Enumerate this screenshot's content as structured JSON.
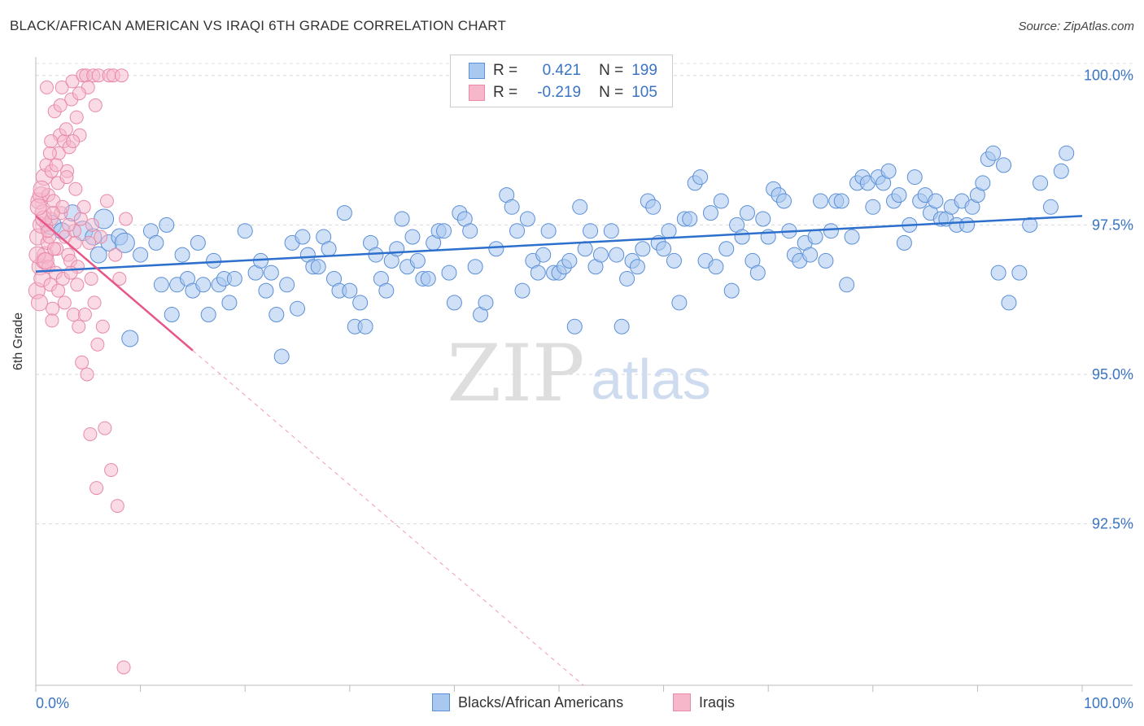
{
  "title": "BLACK/AFRICAN AMERICAN VS IRAQI 6TH GRADE CORRELATION CHART",
  "source": "Source: ZipAtlas.com",
  "watermark": {
    "zip": "ZIP",
    "atlas": "atlas"
  },
  "legend": {
    "r_label": "R =",
    "n_label": "N =",
    "blue": {
      "r": "0.421",
      "n": "199"
    },
    "pink": {
      "r": "-0.219",
      "n": "105"
    }
  },
  "colors": {
    "blue_fill": "#a9c8f0",
    "blue_stroke": "#5b8fd6",
    "blue_line": "#2d6fcc",
    "pink_fill": "#f6b7cb",
    "pink_stroke": "#e88aa8",
    "pink_line": "#e8578a",
    "tick_text": "#3a74c4"
  },
  "chart_data": {
    "type": "scatter",
    "title": "BLACK/AFRICAN AMERICAN VS IRAQI 6TH GRADE CORRELATION CHART",
    "xlabel": "",
    "ylabel": "6th Grade",
    "xlim": [
      0,
      100
    ],
    "ylim": [
      89.8,
      100.2
    ],
    "x_tick_labels": [
      "0.0%",
      "100.0%"
    ],
    "y_ticks": [
      {
        "value": 100.0,
        "label": "100.0%"
      },
      {
        "value": 97.5,
        "label": "97.5%"
      },
      {
        "value": 95.0,
        "label": "95.0%"
      },
      {
        "value": 92.5,
        "label": "92.5%"
      }
    ],
    "grid": true,
    "legend_placement": "bottom-center",
    "series": [
      {
        "name": "Blacks/African Americans",
        "trend": [
          [
            0,
            96.72
          ],
          [
            100,
            97.65
          ]
        ],
        "points": [
          [
            1.5,
            97.5
          ],
          [
            2.5,
            97.4
          ],
          [
            3.5,
            97.7
          ],
          [
            4.5,
            97.4
          ],
          [
            5.5,
            97.3
          ],
          [
            6,
            97.0
          ],
          [
            6.5,
            97.6
          ],
          [
            7,
            97.2
          ],
          [
            8,
            97.3
          ],
          [
            8.5,
            97.2
          ],
          [
            9,
            95.6
          ],
          [
            10,
            97.0
          ],
          [
            11,
            97.4
          ],
          [
            11.5,
            97.2
          ],
          [
            12,
            96.5
          ],
          [
            12.5,
            97.5
          ],
          [
            13,
            96.0
          ],
          [
            13.5,
            96.5
          ],
          [
            14,
            97.0
          ],
          [
            14.5,
            96.6
          ],
          [
            15,
            96.4
          ],
          [
            15.5,
            97.2
          ],
          [
            16,
            96.5
          ],
          [
            16.5,
            96.0
          ],
          [
            17,
            96.9
          ],
          [
            17.5,
            96.5
          ],
          [
            18,
            96.6
          ],
          [
            18.5,
            96.2
          ],
          [
            19,
            96.6
          ],
          [
            20,
            97.4
          ],
          [
            21,
            96.7
          ],
          [
            21.5,
            96.9
          ],
          [
            22,
            96.4
          ],
          [
            22.5,
            96.7
          ],
          [
            23,
            96.0
          ],
          [
            23.5,
            95.3
          ],
          [
            24,
            96.5
          ],
          [
            24.5,
            97.2
          ],
          [
            25,
            96.1
          ],
          [
            25.5,
            97.3
          ],
          [
            26,
            97.0
          ],
          [
            26.5,
            96.8
          ],
          [
            27,
            96.8
          ],
          [
            27.5,
            97.3
          ],
          [
            28,
            97.1
          ],
          [
            28.5,
            96.6
          ],
          [
            29,
            96.4
          ],
          [
            29.5,
            97.7
          ],
          [
            30,
            96.4
          ],
          [
            30.5,
            95.8
          ],
          [
            31,
            96.2
          ],
          [
            31.5,
            95.8
          ],
          [
            32,
            97.2
          ],
          [
            32.5,
            97.0
          ],
          [
            33,
            96.6
          ],
          [
            33.5,
            96.4
          ],
          [
            34,
            96.9
          ],
          [
            34.5,
            97.1
          ],
          [
            35,
            97.6
          ],
          [
            35.5,
            96.8
          ],
          [
            36,
            97.3
          ],
          [
            36.5,
            96.9
          ],
          [
            37,
            96.6
          ],
          [
            37.5,
            96.6
          ],
          [
            38,
            97.2
          ],
          [
            38.5,
            97.4
          ],
          [
            39,
            97.4
          ],
          [
            39.5,
            96.7
          ],
          [
            40,
            96.2
          ],
          [
            40.5,
            97.7
          ],
          [
            41,
            97.6
          ],
          [
            41.5,
            97.4
          ],
          [
            42,
            96.8
          ],
          [
            42.5,
            96.0
          ],
          [
            43,
            96.2
          ],
          [
            44,
            97.1
          ],
          [
            45,
            98.0
          ],
          [
            45.5,
            97.8
          ],
          [
            46,
            97.4
          ],
          [
            46.5,
            96.4
          ],
          [
            47,
            97.6
          ],
          [
            47.5,
            96.9
          ],
          [
            48,
            96.7
          ],
          [
            48.5,
            97.0
          ],
          [
            49,
            97.4
          ],
          [
            49.5,
            96.7
          ],
          [
            50,
            96.7
          ],
          [
            50.5,
            96.8
          ],
          [
            51,
            96.9
          ],
          [
            51.5,
            95.8
          ],
          [
            52,
            97.8
          ],
          [
            52.5,
            97.1
          ],
          [
            53,
            97.4
          ],
          [
            53.5,
            96.8
          ],
          [
            54,
            97.0
          ],
          [
            55,
            97.4
          ],
          [
            55.5,
            97.0
          ],
          [
            56,
            95.8
          ],
          [
            56.5,
            96.6
          ],
          [
            57,
            96.9
          ],
          [
            57.5,
            96.8
          ],
          [
            58,
            97.1
          ],
          [
            58.5,
            97.9
          ],
          [
            59,
            97.8
          ],
          [
            59.5,
            97.2
          ],
          [
            60,
            97.1
          ],
          [
            60.5,
            97.4
          ],
          [
            61,
            96.9
          ],
          [
            61.5,
            96.2
          ],
          [
            62,
            97.6
          ],
          [
            62.5,
            97.6
          ],
          [
            63,
            98.2
          ],
          [
            63.5,
            98.3
          ],
          [
            64,
            96.9
          ],
          [
            64.5,
            97.7
          ],
          [
            65,
            96.8
          ],
          [
            65.5,
            97.9
          ],
          [
            66,
            97.1
          ],
          [
            66.5,
            96.4
          ],
          [
            67,
            97.5
          ],
          [
            67.5,
            97.3
          ],
          [
            68,
            97.7
          ],
          [
            68.5,
            96.9
          ],
          [
            69,
            96.7
          ],
          [
            69.5,
            97.6
          ],
          [
            70,
            97.3
          ],
          [
            70.5,
            98.1
          ],
          [
            71,
            98.0
          ],
          [
            71.5,
            97.9
          ],
          [
            72,
            97.4
          ],
          [
            72.5,
            97.0
          ],
          [
            73,
            96.9
          ],
          [
            73.5,
            97.2
          ],
          [
            74,
            97.0
          ],
          [
            74.5,
            97.3
          ],
          [
            75,
            97.9
          ],
          [
            75.5,
            96.9
          ],
          [
            76,
            97.4
          ],
          [
            76.5,
            97.9
          ],
          [
            77,
            97.9
          ],
          [
            77.5,
            96.5
          ],
          [
            78,
            97.3
          ],
          [
            78.5,
            98.2
          ],
          [
            79,
            98.3
          ],
          [
            79.5,
            98.2
          ],
          [
            80,
            97.8
          ],
          [
            80.5,
            98.3
          ],
          [
            81,
            98.2
          ],
          [
            81.5,
            98.4
          ],
          [
            82,
            97.9
          ],
          [
            82.5,
            98.0
          ],
          [
            83,
            97.2
          ],
          [
            83.5,
            97.5
          ],
          [
            84,
            98.3
          ],
          [
            84.5,
            97.9
          ],
          [
            85,
            98.0
          ],
          [
            85.5,
            97.7
          ],
          [
            86,
            97.9
          ],
          [
            86.5,
            97.6
          ],
          [
            87,
            97.6
          ],
          [
            87.5,
            97.8
          ],
          [
            88,
            97.5
          ],
          [
            88.5,
            97.9
          ],
          [
            89,
            97.5
          ],
          [
            89.5,
            97.8
          ],
          [
            90,
            98.0
          ],
          [
            90.5,
            98.2
          ],
          [
            91,
            98.6
          ],
          [
            91.5,
            98.7
          ],
          [
            92,
            96.7
          ],
          [
            92.5,
            98.5
          ],
          [
            93,
            96.2
          ],
          [
            94,
            96.7
          ],
          [
            95,
            97.5
          ],
          [
            96,
            98.2
          ],
          [
            97,
            97.8
          ],
          [
            98,
            98.4
          ],
          [
            98.5,
            98.7
          ]
        ]
      },
      {
        "name": "Iraqis",
        "trend": [
          [
            0,
            97.65
          ],
          [
            15,
            95.4
          ]
        ],
        "trend_dashed": [
          [
            15,
            95.4
          ],
          [
            95,
            83.4
          ]
        ],
        "points": [
          [
            0.1,
            96.4
          ],
          [
            0.2,
            97.3
          ],
          [
            0.3,
            97.9
          ],
          [
            0.4,
            96.8
          ],
          [
            0.5,
            98.0
          ],
          [
            0.5,
            97.5
          ],
          [
            0.6,
            96.6
          ],
          [
            0.7,
            97.7
          ],
          [
            0.8,
            98.3
          ],
          [
            0.8,
            96.9
          ],
          [
            0.9,
            97.0
          ],
          [
            1.0,
            98.5
          ],
          [
            1.0,
            97.5
          ],
          [
            1.1,
            97.2
          ],
          [
            1.2,
            96.8
          ],
          [
            1.2,
            98.0
          ],
          [
            1.3,
            97.3
          ],
          [
            1.4,
            96.5
          ],
          [
            1.5,
            97.6
          ],
          [
            1.5,
            98.4
          ],
          [
            1.6,
            96.1
          ],
          [
            1.7,
            97.9
          ],
          [
            1.8,
            99.4
          ],
          [
            1.9,
            96.7
          ],
          [
            2.0,
            97.1
          ],
          [
            2.1,
            98.2
          ],
          [
            2.2,
            98.7
          ],
          [
            2.3,
            99.0
          ],
          [
            2.4,
            97.7
          ],
          [
            2.5,
            99.8
          ],
          [
            2.6,
            96.6
          ],
          [
            2.7,
            98.9
          ],
          [
            2.8,
            97.3
          ],
          [
            2.9,
            99.1
          ],
          [
            3.0,
            98.4
          ],
          [
            3.1,
            97.0
          ],
          [
            3.2,
            98.8
          ],
          [
            3.3,
            96.9
          ],
          [
            3.4,
            99.6
          ],
          [
            3.5,
            99.9
          ],
          [
            3.6,
            96.0
          ],
          [
            3.7,
            97.4
          ],
          [
            3.8,
            98.1
          ],
          [
            3.9,
            99.3
          ],
          [
            4.0,
            96.8
          ],
          [
            4.1,
            95.8
          ],
          [
            4.2,
            99.0
          ],
          [
            4.3,
            97.6
          ],
          [
            4.4,
            95.2
          ],
          [
            4.5,
            100.0
          ],
          [
            4.6,
            97.8
          ],
          [
            4.7,
            96.0
          ],
          [
            4.8,
            100.0
          ],
          [
            4.9,
            95.0
          ],
          [
            5.0,
            99.8
          ],
          [
            5.1,
            97.2
          ],
          [
            5.2,
            94.0
          ],
          [
            5.3,
            96.6
          ],
          [
            5.4,
            97.5
          ],
          [
            5.5,
            100.0
          ],
          [
            5.6,
            96.2
          ],
          [
            5.7,
            99.5
          ],
          [
            5.8,
            93.1
          ],
          [
            5.9,
            95.5
          ],
          [
            6.0,
            100.0
          ],
          [
            6.2,
            97.3
          ],
          [
            6.4,
            95.8
          ],
          [
            6.6,
            94.1
          ],
          [
            6.8,
            97.9
          ],
          [
            7.0,
            100.0
          ],
          [
            7.2,
            93.4
          ],
          [
            7.4,
            100.0
          ],
          [
            7.6,
            97.0
          ],
          [
            7.8,
            92.8
          ],
          [
            8.0,
            96.6
          ],
          [
            8.2,
            100.0
          ],
          [
            8.4,
            90.1
          ],
          [
            8.6,
            97.6
          ],
          [
            1.05,
            99.8
          ],
          [
            1.35,
            98.7
          ],
          [
            1.55,
            95.9
          ],
          [
            1.75,
            97.1
          ],
          [
            1.95,
            98.5
          ],
          [
            2.15,
            96.4
          ],
          [
            2.35,
            99.5
          ],
          [
            2.55,
            97.8
          ],
          [
            2.75,
            96.2
          ],
          [
            2.95,
            98.3
          ],
          [
            3.15,
            97.5
          ],
          [
            3.35,
            96.7
          ],
          [
            3.55,
            98.9
          ],
          [
            3.75,
            97.2
          ],
          [
            3.95,
            96.5
          ],
          [
            4.15,
            99.7
          ],
          [
            0.15,
            97.0
          ],
          [
            0.35,
            96.2
          ],
          [
            0.55,
            98.1
          ],
          [
            0.75,
            97.6
          ],
          [
            0.95,
            96.9
          ],
          [
            1.15,
            97.4
          ],
          [
            1.45,
            98.9
          ],
          [
            1.65,
            97.7
          ],
          [
            0.25,
            97.8
          ]
        ]
      }
    ]
  }
}
